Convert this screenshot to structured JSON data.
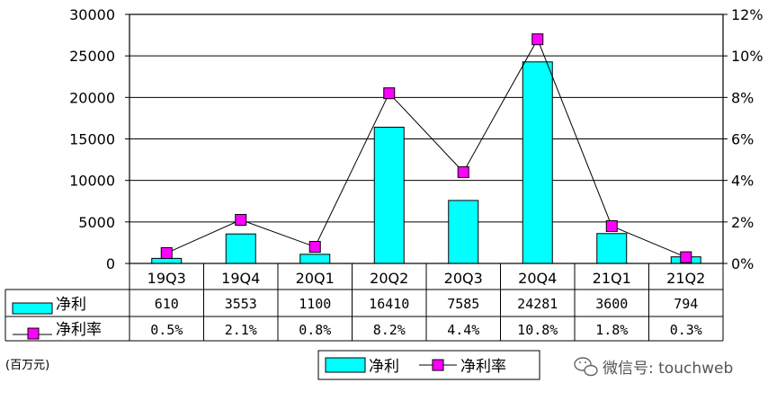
{
  "chart_data": {
    "type": "bar",
    "categories": [
      "19Q3",
      "19Q4",
      "20Q1",
      "20Q2",
      "20Q3",
      "20Q4",
      "21Q1",
      "21Q2"
    ],
    "series": [
      {
        "name": "净利",
        "type": "bar",
        "axis": "left",
        "values": [
          610,
          3553,
          1100,
          16410,
          7585,
          24281,
          3600,
          794
        ],
        "value_labels": [
          "610",
          "3553",
          "1100",
          "16410",
          "7585",
          "24281",
          "3600",
          "794"
        ],
        "color": "#00FFFF"
      },
      {
        "name": "净利率",
        "type": "line",
        "axis": "right",
        "values": [
          0.5,
          2.1,
          0.8,
          8.2,
          4.4,
          10.8,
          1.8,
          0.3
        ],
        "value_labels": [
          "0.5%",
          "2.1%",
          "0.8%",
          "8.2%",
          "4.4%",
          "10.8%",
          "1.8%",
          "0.3%"
        ],
        "color": "#FF00FF"
      }
    ],
    "y_left": {
      "range": [
        0,
        30000
      ],
      "ticks": [
        "0",
        "5000",
        "10000",
        "15000",
        "20000",
        "25000",
        "30000"
      ]
    },
    "y_right": {
      "range": [
        0,
        12
      ],
      "ticks": [
        "0%",
        "2%",
        "4%",
        "6%",
        "8%",
        "10%",
        "12%"
      ]
    },
    "grid": true,
    "legend_position": "bottom",
    "data_table": true,
    "unit_label": "(百万元)"
  },
  "watermark": {
    "icon": "wechat-icon",
    "text": "微信号: touchweb"
  }
}
